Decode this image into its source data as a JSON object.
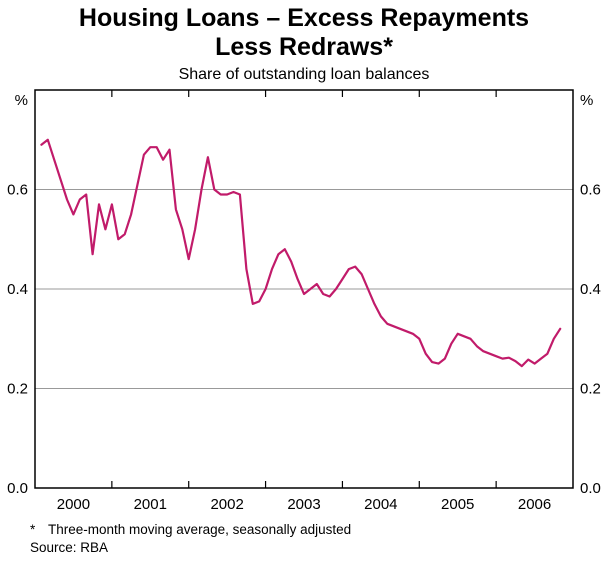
{
  "header": {
    "title_line1": "Housing Loans – Excess Repayments",
    "title_line2": "Less Redraws*",
    "subtitle": "Share of outstanding loan balances"
  },
  "footer": {
    "footnote_marker": "*",
    "footnote_text": "Three-month moving average, seasonally adjusted",
    "source": "Source: RBA"
  },
  "chart_data": {
    "type": "line",
    "title": "Housing Loans – Excess Repayments Less Redraws*",
    "subtitle": "Share of outstanding loan balances",
    "unit_left": "%",
    "unit_right": "%",
    "xlim": [
      1999.5,
      2006.5
    ],
    "ylim": [
      0,
      0.8
    ],
    "grid_values": [
      0.2,
      0.4,
      0.6
    ],
    "grid_color": "#999999",
    "y_ticks": [
      {
        "v": 0.0,
        "label": "0.0"
      },
      {
        "v": 0.2,
        "label": "0.2"
      },
      {
        "v": 0.4,
        "label": "0.4"
      },
      {
        "v": 0.6,
        "label": "0.6"
      }
    ],
    "x_ticks": [
      {
        "v": 2000,
        "label": "2000"
      },
      {
        "v": 2001,
        "label": "2001"
      },
      {
        "v": 2002,
        "label": "2002"
      },
      {
        "v": 2003,
        "label": "2003"
      },
      {
        "v": 2004,
        "label": "2004"
      },
      {
        "v": 2005,
        "label": "2005"
      },
      {
        "v": 2006,
        "label": "2006"
      }
    ],
    "x_minor_ticks": [
      2000.5,
      2001.5,
      2002.5,
      2003.5,
      2004.5,
      2005.5
    ],
    "legend": "none",
    "series": [
      {
        "name": "Excess repayments less redraws, share of outstanding loan balances",
        "color": "#c11b6a",
        "x_start": 1999.5833,
        "points_per_year": 12,
        "values": [
          0.69,
          0.7,
          0.66,
          0.62,
          0.58,
          0.55,
          0.58,
          0.59,
          0.47,
          0.57,
          0.52,
          0.57,
          0.5,
          0.51,
          0.55,
          0.61,
          0.67,
          0.685,
          0.685,
          0.66,
          0.68,
          0.56,
          0.52,
          0.46,
          0.52,
          0.6,
          0.665,
          0.6,
          0.59,
          0.59,
          0.595,
          0.59,
          0.44,
          0.37,
          0.375,
          0.4,
          0.44,
          0.47,
          0.48,
          0.455,
          0.42,
          0.39,
          0.4,
          0.41,
          0.39,
          0.385,
          0.4,
          0.42,
          0.44,
          0.445,
          0.43,
          0.4,
          0.37,
          0.345,
          0.33,
          0.325,
          0.32,
          0.315,
          0.31,
          0.3,
          0.27,
          0.253,
          0.25,
          0.26,
          0.29,
          0.31,
          0.305,
          0.3,
          0.285,
          0.275,
          0.27,
          0.265,
          0.26,
          0.262,
          0.255,
          0.245,
          0.258,
          0.25,
          0.26,
          0.27,
          0.3,
          0.32
        ]
      }
    ]
  }
}
